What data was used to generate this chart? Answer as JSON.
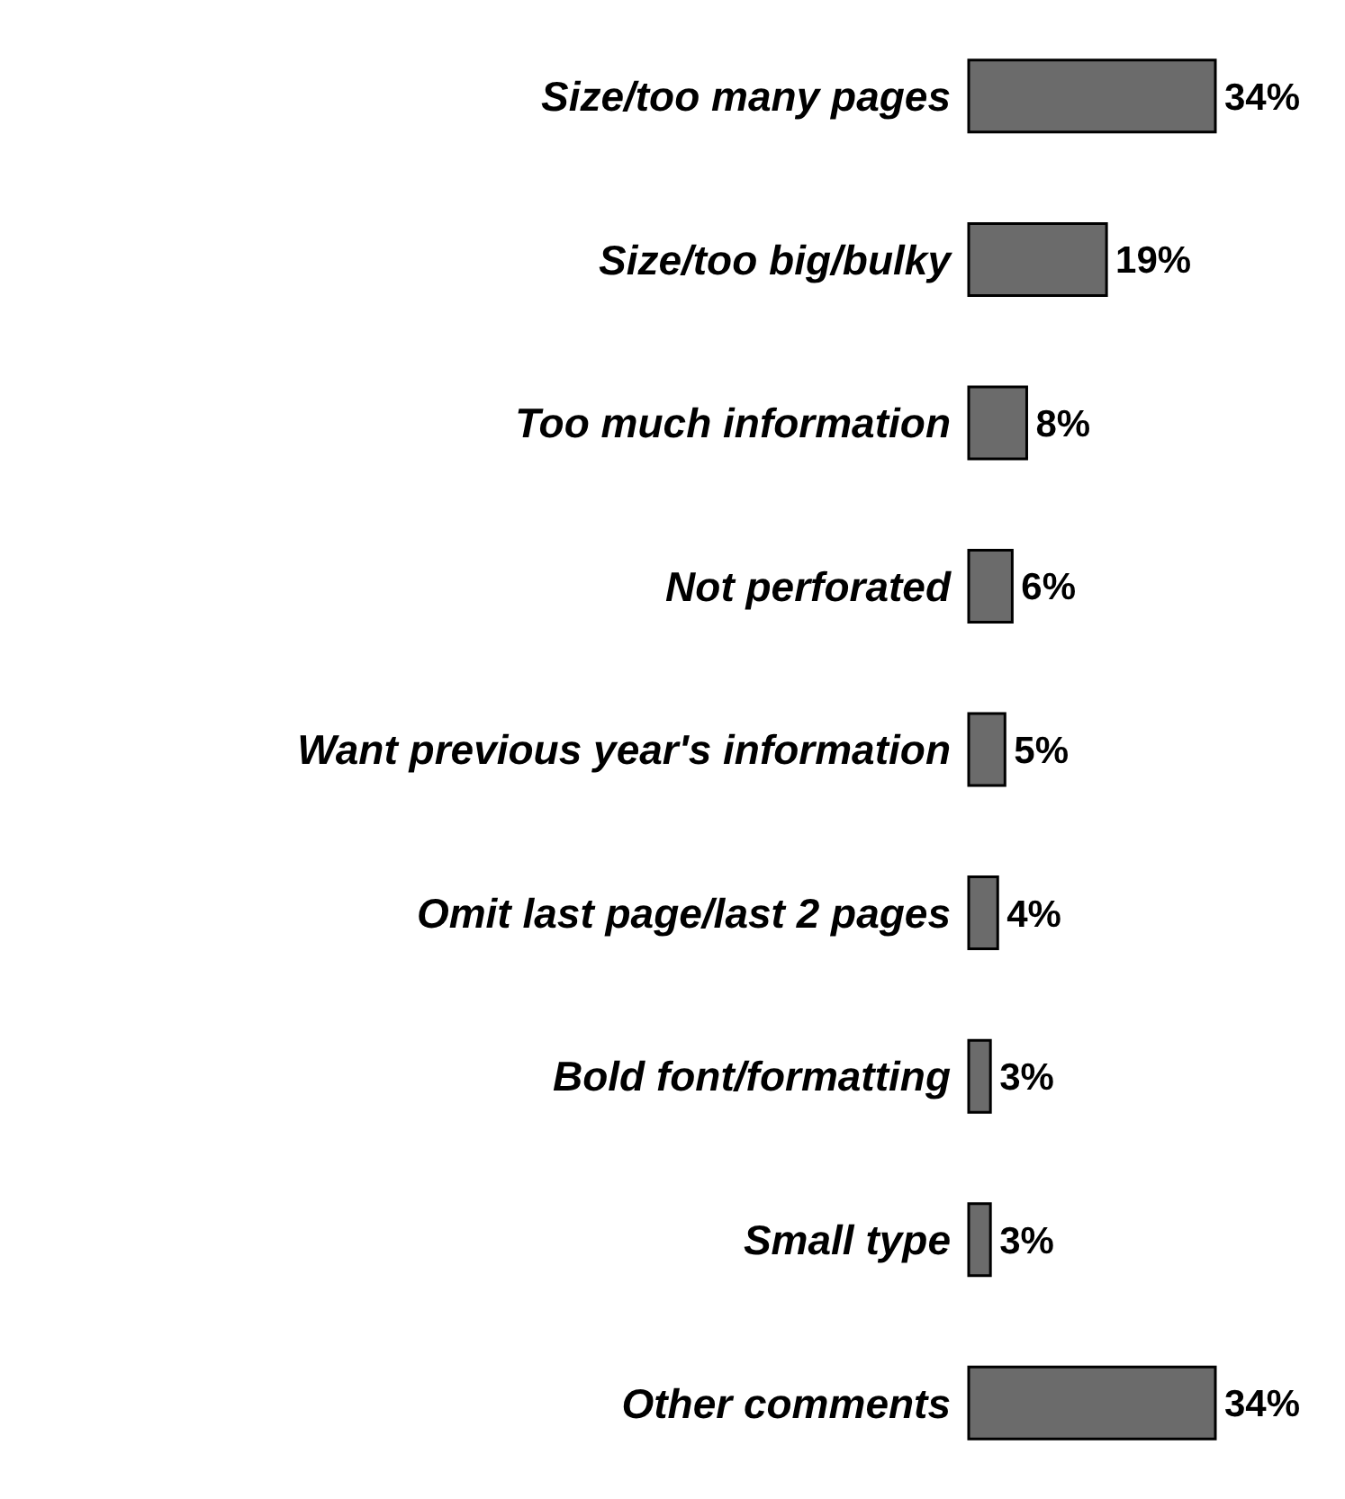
{
  "chart_data": {
    "type": "bar",
    "orientation": "horizontal",
    "categories": [
      "Size/too many pages",
      "Size/too big/bulky",
      "Too much information",
      "Not perforated",
      "Want previous year's information",
      "Omit last page/last 2 pages",
      "Bold font/formatting",
      "Small type",
      "Other comments"
    ],
    "values": [
      34,
      19,
      8,
      6,
      5,
      4,
      3,
      3,
      34
    ],
    "value_labels": [
      "34%",
      "19%",
      "8%",
      "6%",
      "5%",
      "4%",
      "3%",
      "3%",
      "34%"
    ],
    "color": "#6b6b6b"
  }
}
